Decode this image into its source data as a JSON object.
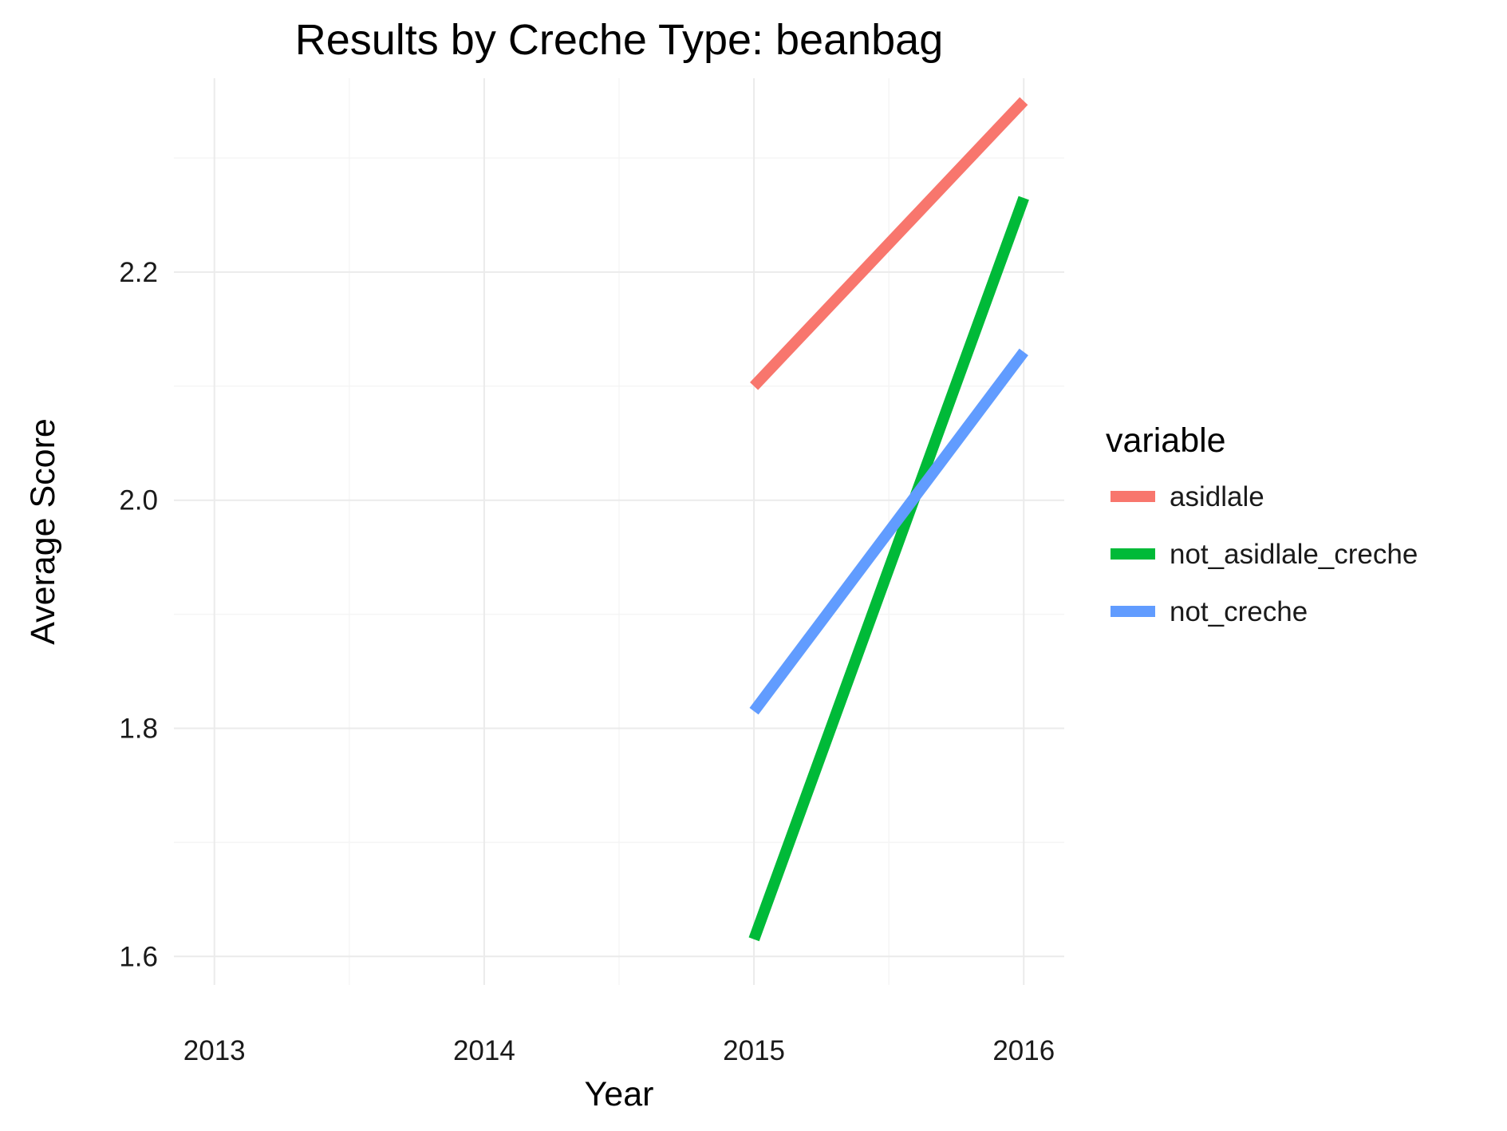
{
  "chart_data": {
    "type": "line",
    "title": "Results by Creche Type: beanbag",
    "xlabel": "Year",
    "ylabel": "Average Score",
    "x_ticks": [
      2013,
      2014,
      2015,
      2016
    ],
    "y_ticks": [
      1.6,
      1.8,
      2.0,
      2.2
    ],
    "y_tick_labels": [
      "1.6",
      "1.8",
      "2.0",
      "2.2"
    ],
    "xlim": [
      2012.85,
      2016.15
    ],
    "ylim": [
      1.575,
      2.37
    ],
    "grid": true,
    "legend": {
      "title": "variable",
      "placement": "right"
    },
    "series": [
      {
        "name": "asidlale",
        "color": "#F8766D",
        "x": [
          2015,
          2016
        ],
        "y": [
          2.1,
          2.35
        ]
      },
      {
        "name": "not_asidlale_creche",
        "color": "#00BA38",
        "x": [
          2015,
          2016
        ],
        "y": [
          1.615,
          2.265
        ]
      },
      {
        "name": "not_creche",
        "color": "#619CFF",
        "x": [
          2015,
          2016
        ],
        "y": [
          1.815,
          2.13
        ]
      }
    ]
  }
}
